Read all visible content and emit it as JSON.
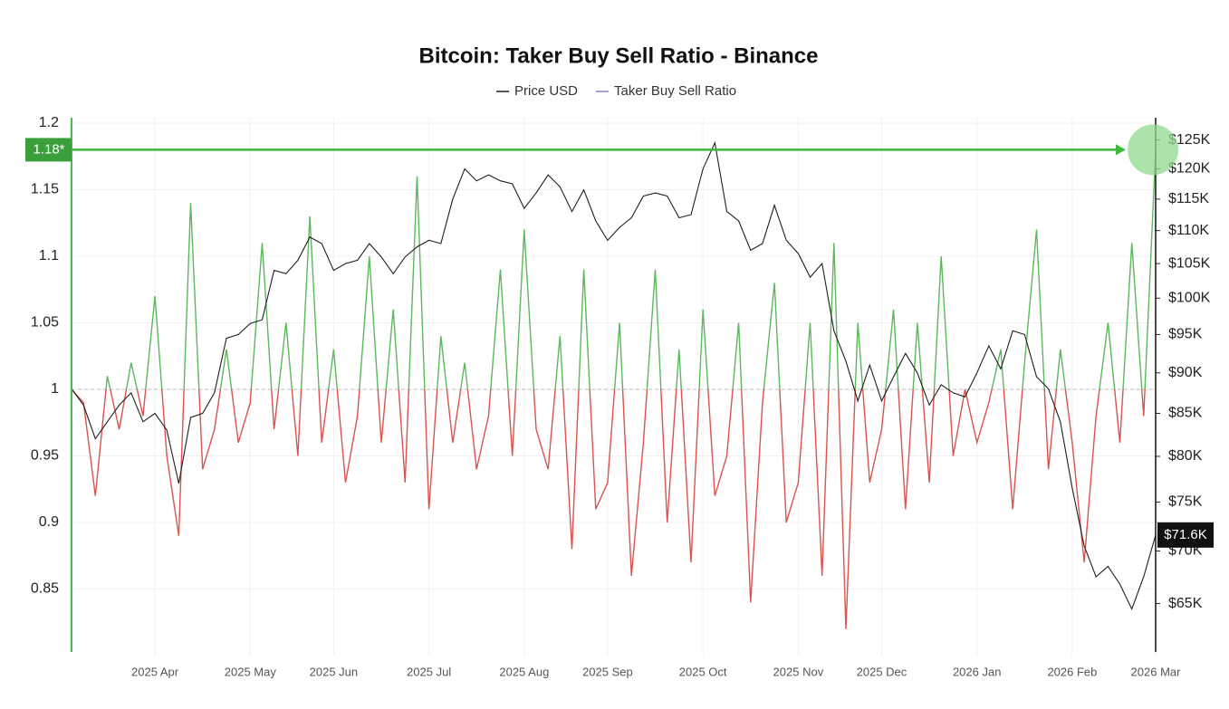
{
  "chart_data": {
    "type": "ratio-price",
    "title": "Bitcoin: Taker Buy Sell Ratio - Binance",
    "categories": [
      null,
      null,
      null,
      null,
      null,
      null,
      null,
      "2025 Apr",
      null,
      null,
      null,
      null,
      null,
      null,
      null,
      "2025 May",
      null,
      null,
      null,
      null,
      null,
      null,
      "2025 Jun",
      null,
      null,
      null,
      null,
      null,
      null,
      null,
      "2025 Jul",
      null,
      null,
      null,
      null,
      null,
      null,
      null,
      "2025 Aug",
      null,
      null,
      null,
      null,
      null,
      null,
      "2025 Sep",
      null,
      null,
      null,
      null,
      null,
      null,
      null,
      "2025 Oct",
      null,
      null,
      null,
      null,
      null,
      null,
      null,
      "2025 Nov",
      null,
      null,
      null,
      null,
      null,
      null,
      "2025 Dec",
      null,
      null,
      null,
      null,
      null,
      null,
      null,
      "2026 Jan",
      null,
      null,
      null,
      null,
      null,
      null,
      null,
      "2026 Feb",
      null,
      null,
      null,
      null,
      null,
      null,
      "2026 Mar"
    ],
    "series": [
      {
        "name": "Price USD",
        "color": "#1f1f1f",
        "axis": "y2",
        "values": [
          88000,
          86000,
          82000,
          84000,
          86000,
          87500,
          84000,
          85000,
          83000,
          77000,
          84500,
          85000,
          87500,
          94500,
          95000,
          96500,
          97000,
          104000,
          103500,
          105500,
          109000,
          108000,
          104000,
          105000,
          105500,
          108000,
          106000,
          103500,
          106000,
          107500,
          108500,
          108000,
          115000,
          120000,
          118000,
          119000,
          118000,
          117500,
          113500,
          116000,
          119000,
          117000,
          113000,
          116500,
          111500,
          108500,
          110500,
          112000,
          115500,
          116000,
          115500,
          112000,
          112500,
          120000,
          124500,
          113000,
          111500,
          107000,
          108000,
          114000,
          108500,
          106500,
          103000,
          105000,
          95500,
          91500,
          86500,
          91000,
          86500,
          89500,
          92500,
          90000,
          86000,
          88500,
          87500,
          87000,
          90000,
          93500,
          90500,
          95500,
          95000,
          89500,
          88000,
          84000,
          76500,
          70500,
          67500,
          68500,
          66800,
          64500,
          67500,
          71600
        ]
      },
      {
        "name": "Taker Buy Sell Ratio",
        "color": "#8c7fd6",
        "positive_color": "#5cb85c",
        "negative_color": "#d9534f",
        "values": [
          1.0,
          0.99,
          0.92,
          1.01,
          0.97,
          1.02,
          0.98,
          1.07,
          0.95,
          0.89,
          1.14,
          0.94,
          0.97,
          1.03,
          0.96,
          0.99,
          1.11,
          0.97,
          1.05,
          0.95,
          1.13,
          0.96,
          1.03,
          0.93,
          0.98,
          1.1,
          0.96,
          1.06,
          0.93,
          1.16,
          0.91,
          1.04,
          0.96,
          1.02,
          0.94,
          0.98,
          1.09,
          0.95,
          1.12,
          0.97,
          0.94,
          1.04,
          0.88,
          1.09,
          0.91,
          0.93,
          1.05,
          0.86,
          0.96,
          1.09,
          0.9,
          1.03,
          0.87,
          1.06,
          0.92,
          0.95,
          1.05,
          0.84,
          0.99,
          1.08,
          0.9,
          0.93,
          1.05,
          0.86,
          1.11,
          0.82,
          1.05,
          0.93,
          0.97,
          1.06,
          0.91,
          1.05,
          0.93,
          1.1,
          0.95,
          1.0,
          0.96,
          0.99,
          1.03,
          0.91,
          1.02,
          1.12,
          0.94,
          1.03,
          0.96,
          0.87,
          0.98,
          1.05,
          0.96,
          1.11,
          0.98,
          1.18
        ]
      }
    ],
    "ylim": [
      0.8,
      1.2
    ],
    "yticks": [
      0.85,
      0.9,
      0.95,
      1,
      1.05,
      1.1,
      1.15,
      1.2
    ],
    "y2lim": [
      60400,
      128000
    ],
    "y2_log": true,
    "y2ticks": [
      {
        "value": 65000,
        "label": "$65K"
      },
      {
        "value": 70000,
        "label": "$70K"
      },
      {
        "value": 75000,
        "label": "$75K"
      },
      {
        "value": 80000,
        "label": "$80K"
      },
      {
        "value": 85000,
        "label": "$85K"
      },
      {
        "value": 90000,
        "label": "$90K"
      },
      {
        "value": 95000,
        "label": "$95K"
      },
      {
        "value": 100000,
        "label": "$100K"
      },
      {
        "value": 105000,
        "label": "$105K"
      },
      {
        "value": 110000,
        "label": "$110K"
      },
      {
        "value": 115000,
        "label": "$115K"
      },
      {
        "value": 120000,
        "label": "$120K"
      },
      {
        "value": 125000,
        "label": "$125K"
      }
    ],
    "reference_line": 1,
    "ratio_marker": {
      "value": 1.18,
      "label": "1.18*"
    },
    "price_marker": {
      "value": 71600,
      "label": "$71.6K"
    },
    "grid": true
  }
}
